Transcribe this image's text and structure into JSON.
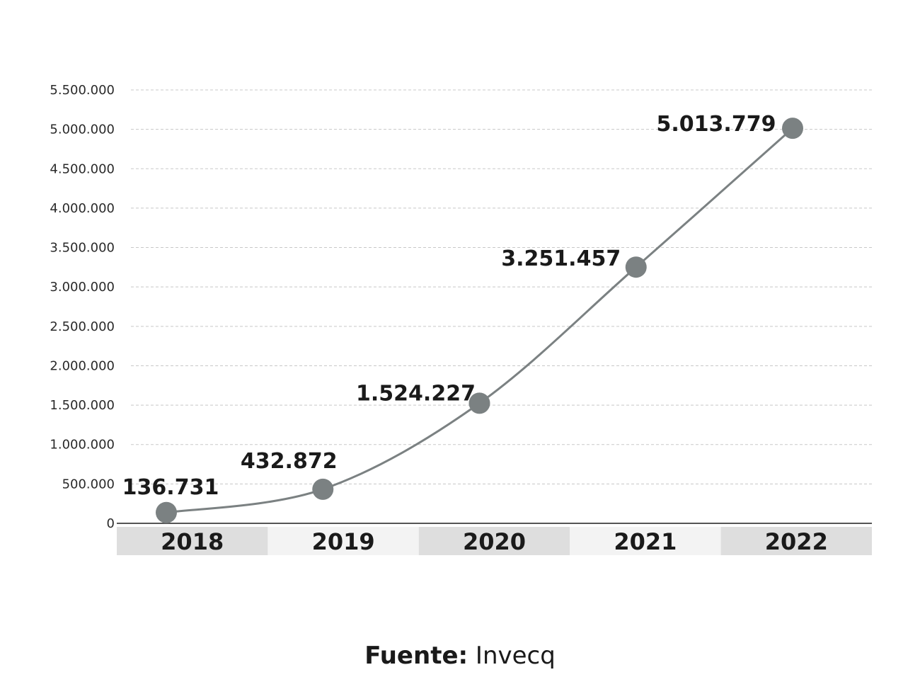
{
  "chart_data": {
    "type": "line",
    "categories": [
      "2018",
      "2019",
      "2020",
      "2021",
      "2022"
    ],
    "values": [
      136731,
      432872,
      1524227,
      3251457,
      5013779
    ],
    "data_labels": [
      "136.731",
      "432.872",
      "1.524.227",
      "3.251.457",
      "5.013.779"
    ],
    "ylim": [
      0,
      5500000
    ],
    "yticks": [
      0,
      500000,
      1000000,
      1500000,
      2000000,
      2500000,
      3000000,
      3500000,
      4000000,
      4500000,
      5000000,
      5500000
    ],
    "ytick_labels": [
      "0",
      "500.000",
      "1.000.000",
      "1.500.000",
      "2.000.000",
      "2.500.000",
      "3.000.000",
      "3.500.000",
      "4.000.000",
      "4.500.000",
      "5.000.000",
      "5.500.000"
    ],
    "grid": true,
    "grid_style": "dashed",
    "colors": {
      "line": "#7b8182",
      "marker": "#7b8182",
      "grid": "#c8c8c8",
      "axis": "#555555",
      "band_dark": "#dedede",
      "band_light": "#f3f3f3"
    }
  },
  "source": {
    "label": "Fuente:",
    "value": "Invecq"
  }
}
